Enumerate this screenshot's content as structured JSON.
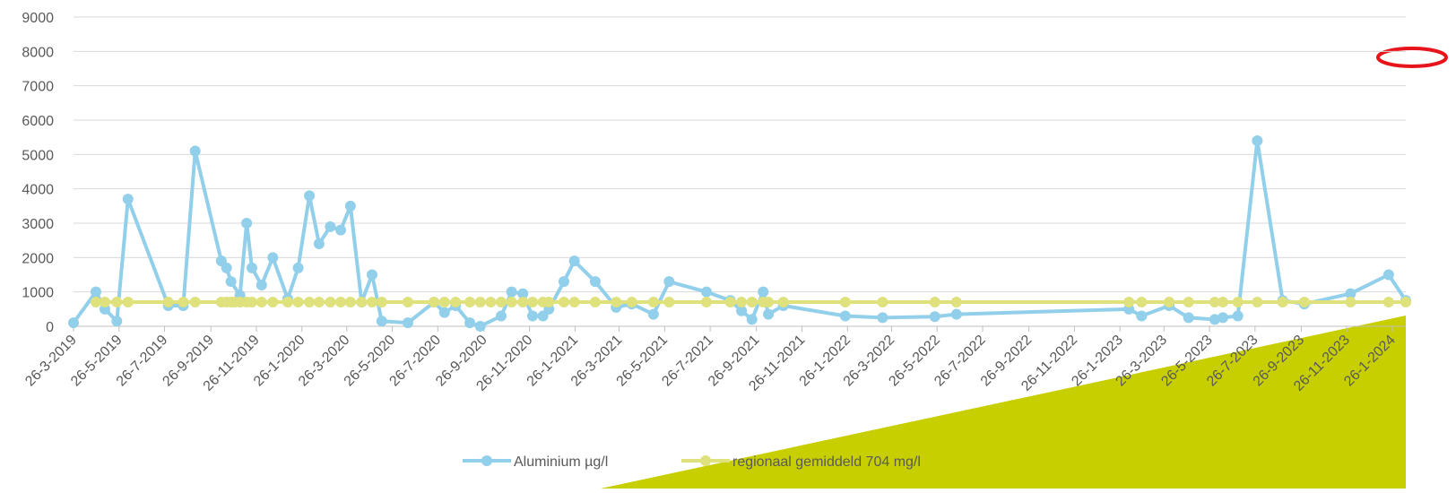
{
  "chart_data": {
    "type": "line",
    "xlim": [
      "26-3-2019",
      "13-2-2024"
    ],
    "ylim": [
      0,
      9000
    ],
    "yticks": [
      0,
      1000,
      2000,
      3000,
      4000,
      5000,
      6000,
      7000,
      8000,
      9000
    ],
    "grid": true,
    "legend": "bottom",
    "xticks": [
      "26-3-2019",
      "26-5-2019",
      "26-7-2019",
      "26-9-2019",
      "26-11-2019",
      "26-1-2020",
      "26-3-2020",
      "26-5-2020",
      "26-7-2020",
      "26-9-2020",
      "26-11-2020",
      "26-1-2021",
      "26-3-2021",
      "26-5-2021",
      "26-7-2021",
      "26-9-2021",
      "26-11-2021",
      "26-1-2022",
      "26-3-2022",
      "26-5-2022",
      "26-7-2022",
      "26-9-2022",
      "26-11-2022",
      "26-1-2023",
      "26-3-2023",
      "26-5-2023",
      "26-7-2023",
      "26-9-2023",
      "26-11-2023",
      "26-1-2024"
    ],
    "series": [
      {
        "name": "Aluminium µg/l",
        "color": "#92cfea",
        "x": [
          "26-3-2019",
          "25-4-2019",
          "7-5-2019",
          "23-5-2019",
          "7-6-2019",
          "31-7-2019",
          "20-8-2019",
          "5-9-2019",
          "10-10-2019",
          "17-10-2019",
          "23-10-2019",
          "4-11-2019",
          "13-11-2019",
          "20-11-2019",
          "3-12-2019",
          "18-12-2019",
          "7-1-2020",
          "21-1-2020",
          "5-2-2020",
          "18-2-2020",
          "4-3-2020",
          "18-3-2020",
          "31-3-2020",
          "15-4-2020",
          "29-4-2020",
          "12-5-2020",
          "16-6-2020",
          "21-7-2020",
          "4-8-2020",
          "19-8-2020",
          "7-9-2020",
          "21-9-2020",
          "19-10-2020",
          "2-11-2020",
          "17-11-2020",
          "30-11-2020",
          "14-12-2020",
          "22-12-2020",
          "11-1-2021",
          "25-1-2021",
          "22-2-2021",
          "22-3-2021",
          "12-4-2021",
          "11-5-2021",
          "1-6-2021",
          "21-7-2021",
          "22-8-2021",
          "6-9-2021",
          "20-9-2021",
          "5-10-2021",
          "12-10-2021",
          "1-11-2021",
          "23-1-2022",
          "14-3-2022",
          "23-5-2022",
          "21-6-2022",
          "7-2-2023",
          "24-2-2023",
          "2-4-2023",
          "28-4-2023",
          "2-6-2023",
          "13-6-2023",
          "3-7-2023",
          "29-7-2023",
          "1-9-2023",
          "30-9-2023",
          "1-12-2023",
          "21-1-2024",
          "13-2-2024"
        ],
        "values": [
          100,
          1000,
          500,
          150,
          3700,
          600,
          600,
          5100,
          1900,
          1700,
          1300,
          900,
          3000,
          1700,
          1200,
          2000,
          800,
          1700,
          3800,
          2400,
          2900,
          2800,
          3500,
          700,
          1500,
          150,
          100,
          700,
          400,
          600,
          100,
          0,
          300,
          1000,
          950,
          300,
          300,
          500,
          1300,
          1900,
          1300,
          550,
          650,
          350,
          1300,
          1000,
          750,
          450,
          200,
          1000,
          350,
          600,
          300,
          250,
          280,
          350,
          500,
          300,
          600,
          250,
          200,
          250,
          300,
          5400,
          750,
          650,
          950,
          1500,
          750
        ]
      },
      {
        "name": "regionaal gemiddeld 704 mg/l",
        "color": "#dfe27c",
        "x": [
          "25-4-2019",
          "7-5-2019",
          "23-5-2019",
          "7-6-2019",
          "31-7-2019",
          "20-8-2019",
          "5-9-2019",
          "10-10-2019",
          "17-10-2019",
          "23-10-2019",
          "28-10-2019",
          "4-11-2019",
          "13-11-2019",
          "20-11-2019",
          "3-12-2019",
          "18-12-2019",
          "7-1-2020",
          "21-1-2020",
          "5-2-2020",
          "18-2-2020",
          "4-3-2020",
          "18-3-2020",
          "31-3-2020",
          "15-4-2020",
          "29-4-2020",
          "12-5-2020",
          "16-6-2020",
          "21-7-2020",
          "4-8-2020",
          "19-8-2020",
          "7-9-2020",
          "21-9-2020",
          "5-10-2020",
          "19-10-2020",
          "2-11-2020",
          "17-11-2020",
          "30-11-2020",
          "14-12-2020",
          "22-12-2020",
          "11-1-2021",
          "25-1-2021",
          "22-2-2021",
          "22-3-2021",
          "12-4-2021",
          "11-5-2021",
          "1-6-2021",
          "21-7-2021",
          "22-8-2021",
          "6-9-2021",
          "20-9-2021",
          "5-10-2021",
          "12-10-2021",
          "1-11-2021",
          "23-1-2022",
          "14-3-2022",
          "23-5-2022",
          "21-6-2022",
          "7-2-2023",
          "24-2-2023",
          "2-4-2023",
          "28-4-2023",
          "2-6-2023",
          "13-6-2023",
          "3-7-2023",
          "29-7-2023",
          "1-9-2023",
          "30-9-2023",
          "1-12-2023",
          "21-1-2024",
          "13-2-2024"
        ],
        "values": [
          704,
          704,
          704,
          704,
          704,
          704,
          704,
          704,
          704,
          704,
          704,
          704,
          704,
          704,
          704,
          704,
          704,
          704,
          704,
          704,
          704,
          704,
          704,
          704,
          704,
          704,
          704,
          704,
          704,
          704,
          704,
          704,
          704,
          704,
          704,
          704,
          704,
          704,
          704,
          704,
          704,
          704,
          704,
          704,
          704,
          704,
          704,
          704,
          704,
          704,
          704,
          704,
          704,
          704,
          704,
          704,
          704,
          704,
          704,
          704,
          704,
          704,
          704,
          704,
          704,
          704,
          704,
          704,
          704,
          704
        ]
      }
    ]
  }
}
